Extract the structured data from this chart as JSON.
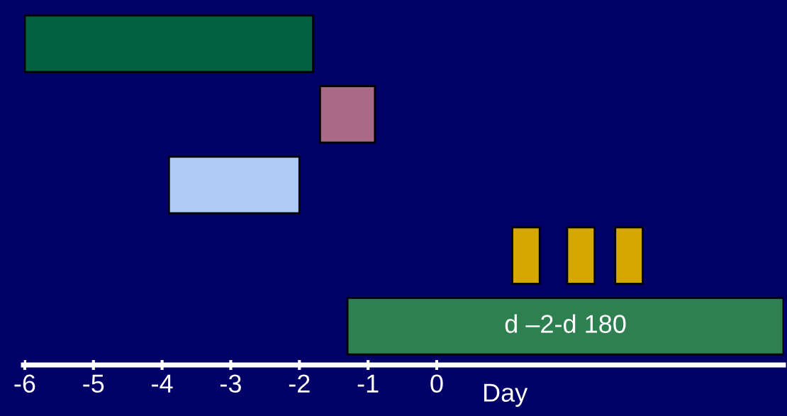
{
  "chart_data": {
    "type": "bar",
    "orientation": "horizontal",
    "xlabel": "Day",
    "categories": [
      null,
      null,
      null,
      null,
      null
    ],
    "xlim": [
      -6.02,
      5.05
    ],
    "xticks": [
      {
        "value": -6,
        "label": "-6"
      },
      {
        "value": -5,
        "label": "-5"
      },
      {
        "value": -4,
        "label": "-4"
      },
      {
        "value": -3,
        "label": "-3"
      },
      {
        "value": -2,
        "label": "-2"
      },
      {
        "value": -1,
        "label": "-1"
      },
      {
        "value": 0,
        "label": "0"
      }
    ],
    "grid": false,
    "legend": false,
    "tick_labels": "x",
    "series": [
      {
        "color": "#006040",
        "values": [
          4.2,
          null,
          null,
          null,
          null
        ],
        "base": [
          -6,
          null,
          null,
          null,
          null
        ]
      },
      {
        "color": "#a86a87",
        "values": [
          null,
          0.8,
          null,
          null,
          null
        ],
        "base": [
          null,
          -1.7,
          null,
          null,
          null
        ]
      },
      {
        "color": "#aecbf7",
        "values": [
          null,
          null,
          1.9,
          null,
          null
        ],
        "base": [
          null,
          null,
          -3.9,
          null,
          null
        ]
      },
      {
        "color": "#d4a800",
        "values": [
          null,
          null,
          null,
          0.4,
          null
        ],
        "base": [
          null,
          null,
          null,
          1.1,
          null
        ]
      },
      {
        "color": "#d4a800",
        "values": [
          null,
          null,
          null,
          0.4,
          null
        ],
        "base": [
          null,
          null,
          null,
          1.9,
          null
        ]
      },
      {
        "color": "#d4a800",
        "values": [
          null,
          null,
          null,
          0.4,
          null
        ],
        "base": [
          null,
          null,
          null,
          2.6,
          null
        ]
      },
      {
        "color": "#2e8050",
        "values": [
          null,
          null,
          null,
          null,
          6.35
        ],
        "base": [
          null,
          null,
          null,
          null,
          -1.3
        ],
        "value_labels": [
          null,
          null,
          null,
          null,
          "d –2-d 180"
        ]
      }
    ]
  }
}
